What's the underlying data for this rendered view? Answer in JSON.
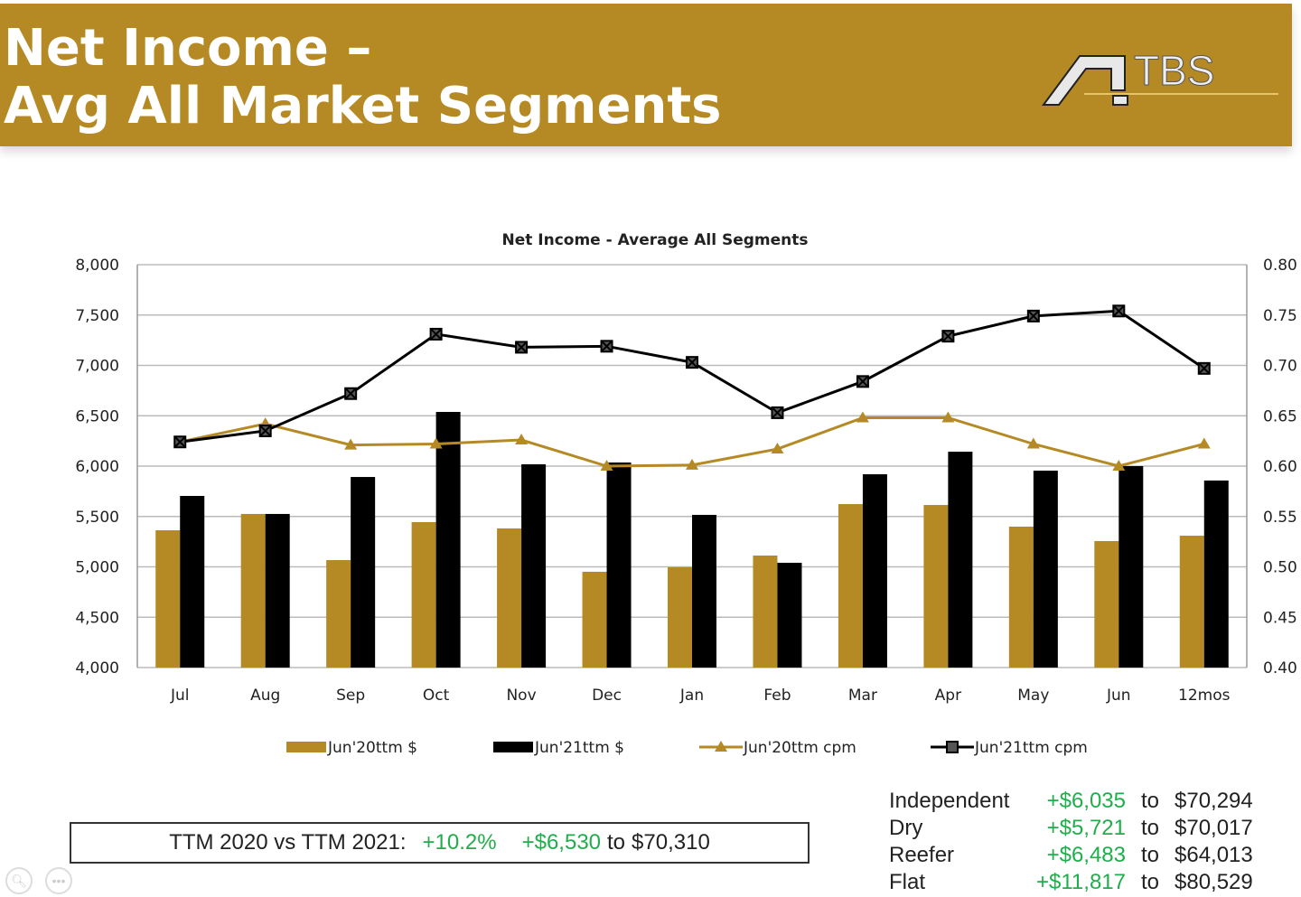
{
  "header": {
    "title_line1": "Net Income –",
    "title_line2": "Avg All Market Segments",
    "logo_text": "TBS",
    "banner_color": "#b58a25"
  },
  "chart_data": {
    "type": "bar+line",
    "title": "Net Income - Average All Segments",
    "categories": [
      "Jul",
      "Aug",
      "Sep",
      "Oct",
      "Nov",
      "Dec",
      "Jan",
      "Feb",
      "Mar",
      "Apr",
      "May",
      "Jun",
      "12mos"
    ],
    "y_left": {
      "range": [
        4000,
        8000
      ],
      "ticks": [
        "4,000",
        "4,500",
        "5,000",
        "5,500",
        "6,000",
        "6,500",
        "7,000",
        "7,500",
        "8,000"
      ]
    },
    "y_right": {
      "range": [
        0.4,
        0.8
      ],
      "ticks": [
        "0.40",
        "0.45",
        "0.50",
        "0.55",
        "0.60",
        "0.65",
        "0.70",
        "0.75",
        "0.80"
      ]
    },
    "grid": true,
    "legend_position": "bottom",
    "series": [
      {
        "name": "Jun'20ttm $",
        "kind": "bar",
        "axis": "left",
        "color": "#b58a25",
        "values": [
          5363,
          5525,
          5067,
          5444,
          5381,
          4951,
          4996,
          5112,
          5623,
          5614,
          5399,
          5256,
          5309
        ]
      },
      {
        "name": "Jun'21ttm $",
        "kind": "bar",
        "axis": "left",
        "color": "#000000",
        "values": [
          5704,
          5525,
          5892,
          6538,
          6018,
          6036,
          5516,
          5040,
          5919,
          6143,
          5955,
          6000,
          5857
        ]
      },
      {
        "name": "Jun'20ttm cpm",
        "kind": "line",
        "marker": "triangle",
        "axis": "right",
        "color": "#b58a25",
        "values": [
          0.624,
          0.642,
          0.621,
          0.622,
          0.626,
          0.6,
          0.601,
          0.617,
          0.648,
          0.648,
          0.622,
          0.6,
          0.622
        ]
      },
      {
        "name": "Jun'21ttm cpm",
        "kind": "line",
        "marker": "x-square",
        "axis": "right",
        "color": "#000000",
        "values": [
          0.624,
          0.635,
          0.672,
          0.731,
          0.718,
          0.719,
          0.703,
          0.653,
          0.684,
          0.729,
          0.749,
          0.754,
          0.697
        ]
      }
    ]
  },
  "summary": {
    "label": "TTM 2020 vs TTM 2021:",
    "pct": "+10.2%",
    "increase": "+$6,530",
    "to": "to",
    "total": "$70,310"
  },
  "segments": [
    {
      "name": "Independent",
      "increase": "+$6,035",
      "to": "to",
      "total": "$70,294"
    },
    {
      "name": "Dry",
      "increase": "+$5,721",
      "to": "to",
      "total": "$70,017"
    },
    {
      "name": "Reefer",
      "increase": "+$6,483",
      "to": "to",
      "total": "$64,013"
    },
    {
      "name": "Flat",
      "increase": "+$11,817",
      "to": "to",
      "total": "$80,529"
    }
  ],
  "controls": {
    "zoom_icon": "magnifier-icon",
    "more_icon": "ellipsis-icon"
  }
}
